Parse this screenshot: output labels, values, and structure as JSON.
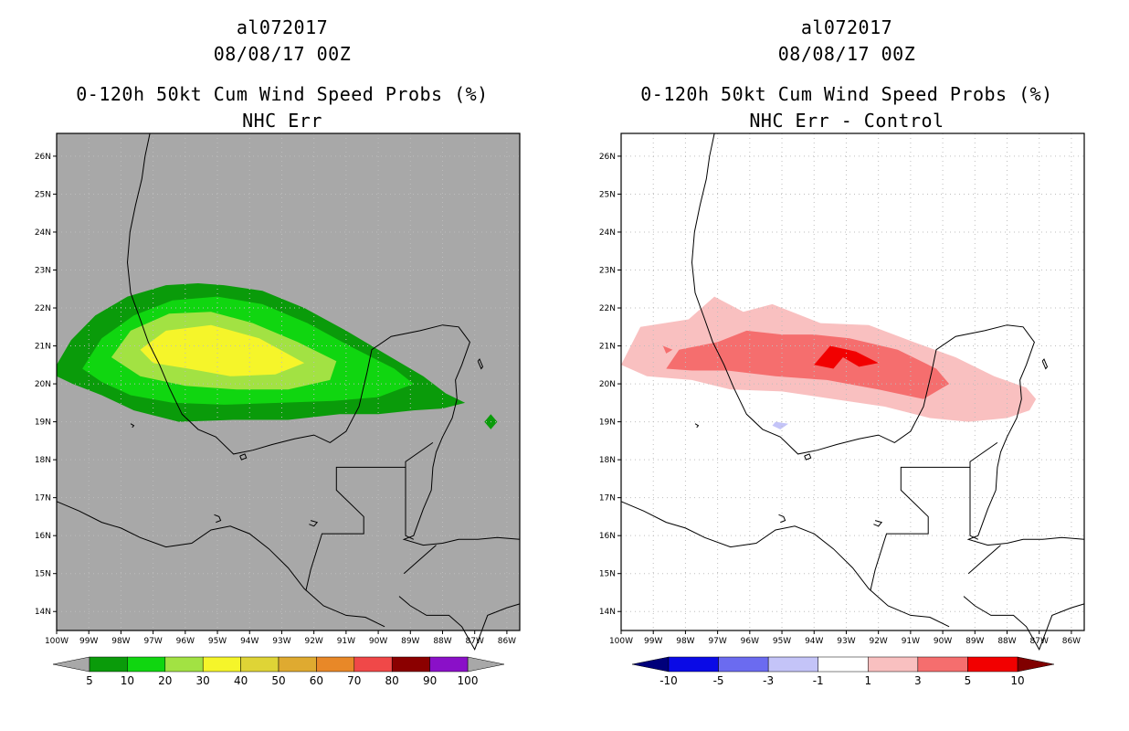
{
  "left_panel": {
    "title_line1": "al072017",
    "title_line2": "08/08/17 00Z",
    "title_line3": "0-120h 50kt Cum Wind Speed Probs (%)",
    "title_line4": "NHC Err",
    "background_color": "#a8a8a8",
    "colorbar": {
      "labels": [
        "5",
        "10",
        "20",
        "30",
        "40",
        "50",
        "60",
        "70",
        "80",
        "90",
        "100"
      ],
      "colors": [
        "#0a9b0a",
        "#10d610",
        "#a2e243",
        "#f5f52a",
        "#dfd436",
        "#dfaa30",
        "#e88828",
        "#f04848",
        "#8b0000",
        "#8a10c8"
      ],
      "under_color": "#a8a8a8",
      "over_color": "#a8a8a8"
    }
  },
  "right_panel": {
    "title_line1": "al072017",
    "title_line2": "08/08/17 00Z",
    "title_line3": "0-120h 50kt Cum Wind Speed Probs (%)",
    "title_line4": "NHC Err - Control",
    "background_color": "#ffffff",
    "colorbar": {
      "labels": [
        "-10",
        "-5",
        "-3",
        "-1",
        "1",
        "3",
        "5",
        "10"
      ],
      "colors": [
        "#0a0ae6",
        "#6b6bf0",
        "#c4c4f8",
        "#ffffff",
        "#f9c0c0",
        "#f56e6e",
        "#f20000"
      ],
      "under_color": "#00007a",
      "over_color": "#800000"
    }
  },
  "axes": {
    "lat_labels": [
      "26N",
      "25N",
      "24N",
      "23N",
      "22N",
      "21N",
      "20N",
      "19N",
      "18N",
      "17N",
      "16N",
      "15N",
      "14N"
    ],
    "lon_labels": [
      "100W",
      "99W",
      "98W",
      "97W",
      "96W",
      "95W",
      "94W",
      "93W",
      "92W",
      "91W",
      "90W",
      "89W",
      "88W",
      "87W",
      "86W"
    ]
  }
}
